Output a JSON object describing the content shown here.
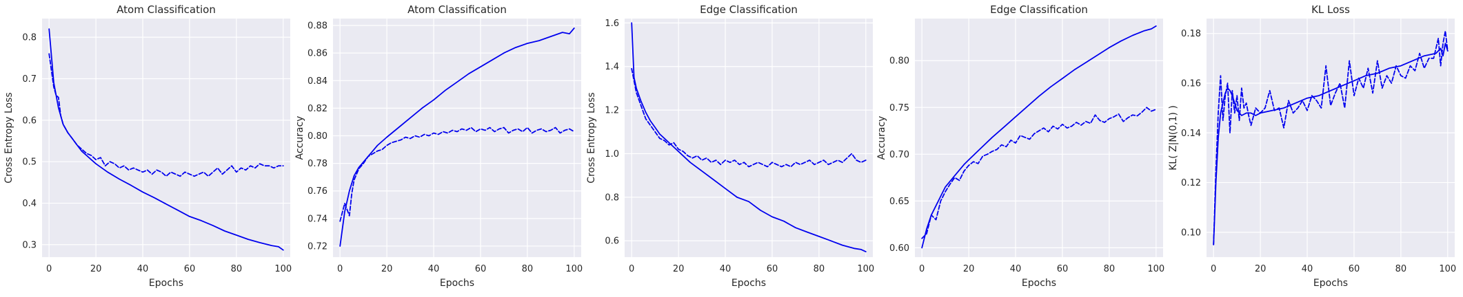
{
  "chart_data": [
    {
      "type": "line",
      "title": "Atom Classification",
      "xlabel": "Epochs",
      "ylabel": "Cross Entropy Loss",
      "xlim": [
        -3,
        103
      ],
      "ylim": [
        0.27,
        0.845
      ],
      "xticks": [
        0,
        20,
        40,
        60,
        80,
        100
      ],
      "xtick_labels": [
        "0",
        "20",
        "40",
        "60",
        "80",
        "100"
      ],
      "yticks": [
        0.3,
        0.4,
        0.5,
        0.6,
        0.7,
        0.8
      ],
      "ytick_labels": [
        "0.3",
        "0.4",
        "0.5",
        "0.6",
        "0.7",
        "0.8"
      ],
      "grid": true,
      "series": [
        {
          "style": "solid",
          "x": [
            0,
            2,
            4,
            6,
            8,
            10,
            12,
            14,
            16,
            18,
            20,
            25,
            30,
            35,
            40,
            45,
            50,
            55,
            60,
            65,
            70,
            75,
            80,
            85,
            90,
            95,
            98,
            100
          ],
          "y": [
            0.82,
            0.69,
            0.63,
            0.59,
            0.57,
            0.555,
            0.54,
            0.525,
            0.515,
            0.505,
            0.495,
            0.475,
            0.458,
            0.443,
            0.427,
            0.413,
            0.398,
            0.383,
            0.368,
            0.358,
            0.346,
            0.333,
            0.323,
            0.313,
            0.305,
            0.298,
            0.295,
            0.287
          ]
        },
        {
          "style": "dashed",
          "x": [
            0,
            2,
            3,
            4,
            5,
            6,
            8,
            10,
            12,
            14,
            16,
            18,
            20,
            22,
            24,
            26,
            28,
            30,
            32,
            34,
            36,
            38,
            40,
            42,
            44,
            46,
            48,
            50,
            52,
            54,
            56,
            58,
            60,
            62,
            64,
            66,
            68,
            70,
            72,
            74,
            76,
            78,
            80,
            82,
            84,
            86,
            88,
            90,
            92,
            94,
            96,
            98,
            100
          ],
          "y": [
            0.76,
            0.68,
            0.66,
            0.655,
            0.61,
            0.59,
            0.57,
            0.555,
            0.54,
            0.53,
            0.52,
            0.515,
            0.505,
            0.51,
            0.49,
            0.5,
            0.495,
            0.485,
            0.49,
            0.48,
            0.485,
            0.48,
            0.475,
            0.48,
            0.47,
            0.48,
            0.475,
            0.465,
            0.475,
            0.47,
            0.465,
            0.475,
            0.47,
            0.465,
            0.47,
            0.475,
            0.465,
            0.475,
            0.485,
            0.47,
            0.48,
            0.49,
            0.475,
            0.485,
            0.48,
            0.49,
            0.485,
            0.495,
            0.49,
            0.49,
            0.485,
            0.49,
            0.49
          ]
        }
      ]
    },
    {
      "type": "line",
      "title": "Atom Classification",
      "xlabel": "Epochs",
      "ylabel": "Accuracy",
      "xlim": [
        -3,
        103
      ],
      "ylim": [
        0.712,
        0.885
      ],
      "xticks": [
        0,
        20,
        40,
        60,
        80,
        100
      ],
      "xtick_labels": [
        "0",
        "20",
        "40",
        "60",
        "80",
        "100"
      ],
      "yticks": [
        0.72,
        0.74,
        0.76,
        0.78,
        0.8,
        0.82,
        0.84,
        0.86,
        0.88
      ],
      "ytick_labels": [
        "0.72",
        "0.74",
        "0.76",
        "0.78",
        "0.80",
        "0.82",
        "0.84",
        "0.86",
        "0.88"
      ],
      "grid": true,
      "series": [
        {
          "style": "solid",
          "x": [
            0,
            2,
            4,
            6,
            8,
            10,
            12,
            14,
            16,
            18,
            20,
            25,
            30,
            35,
            40,
            45,
            50,
            55,
            60,
            65,
            70,
            75,
            80,
            85,
            90,
            95,
            98,
            100
          ],
          "y": [
            0.72,
            0.745,
            0.76,
            0.771,
            0.777,
            0.781,
            0.785,
            0.789,
            0.793,
            0.796,
            0.799,
            0.806,
            0.813,
            0.82,
            0.826,
            0.833,
            0.839,
            0.845,
            0.85,
            0.855,
            0.86,
            0.864,
            0.867,
            0.869,
            0.872,
            0.875,
            0.874,
            0.878
          ]
        },
        {
          "style": "dashed",
          "x": [
            0,
            2,
            4,
            5,
            6,
            8,
            10,
            12,
            14,
            16,
            18,
            20,
            22,
            24,
            26,
            28,
            30,
            32,
            34,
            36,
            38,
            40,
            42,
            44,
            46,
            48,
            50,
            52,
            54,
            56,
            58,
            60,
            62,
            64,
            66,
            68,
            70,
            72,
            74,
            76,
            78,
            80,
            82,
            84,
            86,
            88,
            90,
            92,
            94,
            96,
            98,
            100
          ],
          "y": [
            0.738,
            0.751,
            0.742,
            0.758,
            0.768,
            0.776,
            0.78,
            0.785,
            0.787,
            0.789,
            0.79,
            0.793,
            0.795,
            0.796,
            0.797,
            0.799,
            0.798,
            0.8,
            0.799,
            0.801,
            0.8,
            0.802,
            0.801,
            0.803,
            0.802,
            0.804,
            0.803,
            0.805,
            0.804,
            0.806,
            0.803,
            0.805,
            0.804,
            0.806,
            0.803,
            0.805,
            0.806,
            0.802,
            0.804,
            0.805,
            0.803,
            0.806,
            0.802,
            0.804,
            0.805,
            0.803,
            0.804,
            0.806,
            0.802,
            0.804,
            0.805,
            0.803
          ]
        }
      ]
    },
    {
      "type": "line",
      "title": "Edge Classification",
      "xlabel": "Epochs",
      "ylabel": "Cross Entropy Loss",
      "xlim": [
        -3,
        103
      ],
      "ylim": [
        0.525,
        1.62
      ],
      "xticks": [
        0,
        20,
        40,
        60,
        80,
        100
      ],
      "xtick_labels": [
        "0",
        "20",
        "40",
        "60",
        "80",
        "100"
      ],
      "yticks": [
        0.6,
        0.8,
        1.0,
        1.2,
        1.4,
        1.6
      ],
      "ytick_labels": [
        "0.6",
        "0.8",
        "1.0",
        "1.2",
        "1.4",
        "1.6"
      ],
      "grid": true,
      "series": [
        {
          "style": "solid",
          "x": [
            0,
            1,
            2,
            4,
            6,
            8,
            10,
            12,
            14,
            16,
            18,
            20,
            25,
            30,
            35,
            40,
            45,
            50,
            55,
            60,
            65,
            70,
            75,
            80,
            85,
            90,
            95,
            98,
            100
          ],
          "y": [
            1.6,
            1.35,
            1.3,
            1.24,
            1.19,
            1.15,
            1.12,
            1.09,
            1.07,
            1.05,
            1.03,
            1.01,
            0.96,
            0.92,
            0.88,
            0.84,
            0.8,
            0.78,
            0.74,
            0.71,
            0.69,
            0.66,
            0.64,
            0.62,
            0.6,
            0.58,
            0.565,
            0.56,
            0.55
          ]
        },
        {
          "style": "dashed",
          "x": [
            0,
            2,
            4,
            6,
            8,
            10,
            12,
            14,
            16,
            18,
            20,
            22,
            24,
            26,
            28,
            30,
            32,
            34,
            36,
            38,
            40,
            42,
            44,
            46,
            48,
            50,
            52,
            54,
            56,
            58,
            60,
            62,
            64,
            66,
            68,
            70,
            72,
            74,
            76,
            78,
            80,
            82,
            84,
            86,
            88,
            90,
            92,
            94,
            96,
            98,
            100
          ],
          "y": [
            1.39,
            1.28,
            1.22,
            1.16,
            1.13,
            1.1,
            1.07,
            1.06,
            1.04,
            1.05,
            1.02,
            1.01,
            0.99,
            0.98,
            0.99,
            0.97,
            0.98,
            0.96,
            0.97,
            0.95,
            0.97,
            0.96,
            0.97,
            0.95,
            0.96,
            0.94,
            0.95,
            0.96,
            0.95,
            0.94,
            0.96,
            0.95,
            0.94,
            0.95,
            0.94,
            0.96,
            0.95,
            0.96,
            0.97,
            0.95,
            0.96,
            0.97,
            0.95,
            0.96,
            0.97,
            0.96,
            0.98,
            1.0,
            0.97,
            0.96,
            0.97
          ]
        }
      ]
    },
    {
      "type": "line",
      "title": "Edge Classification",
      "xlabel": "Epochs",
      "ylabel": "Accuracy",
      "xlim": [
        -3,
        103
      ],
      "ylim": [
        0.59,
        0.845
      ],
      "xticks": [
        0,
        20,
        40,
        60,
        80,
        100
      ],
      "xtick_labels": [
        "0",
        "20",
        "40",
        "60",
        "80",
        "100"
      ],
      "yticks": [
        0.6,
        0.65,
        0.7,
        0.75,
        0.8
      ],
      "ytick_labels": [
        "0.60",
        "0.65",
        "0.70",
        "0.75",
        "0.80"
      ],
      "grid": true,
      "series": [
        {
          "style": "solid",
          "x": [
            0,
            2,
            4,
            6,
            8,
            10,
            12,
            14,
            16,
            18,
            20,
            25,
            30,
            35,
            40,
            45,
            50,
            55,
            60,
            65,
            70,
            75,
            80,
            85,
            90,
            95,
            98,
            100
          ],
          "y": [
            0.6,
            0.62,
            0.635,
            0.645,
            0.655,
            0.665,
            0.671,
            0.677,
            0.683,
            0.689,
            0.694,
            0.706,
            0.718,
            0.729,
            0.74,
            0.751,
            0.762,
            0.772,
            0.781,
            0.79,
            0.798,
            0.806,
            0.814,
            0.821,
            0.827,
            0.832,
            0.834,
            0.837
          ]
        },
        {
          "style": "dashed",
          "x": [
            0,
            2,
            4,
            6,
            8,
            10,
            12,
            14,
            16,
            18,
            20,
            22,
            24,
            26,
            28,
            30,
            32,
            34,
            36,
            38,
            40,
            42,
            44,
            46,
            48,
            50,
            52,
            54,
            56,
            58,
            60,
            62,
            64,
            66,
            68,
            70,
            72,
            74,
            76,
            78,
            80,
            82,
            84,
            86,
            88,
            90,
            92,
            94,
            96,
            98,
            100
          ],
          "y": [
            0.61,
            0.615,
            0.635,
            0.63,
            0.65,
            0.66,
            0.668,
            0.675,
            0.672,
            0.682,
            0.688,
            0.692,
            0.69,
            0.698,
            0.7,
            0.703,
            0.705,
            0.71,
            0.708,
            0.715,
            0.712,
            0.72,
            0.718,
            0.716,
            0.722,
            0.725,
            0.728,
            0.724,
            0.73,
            0.727,
            0.732,
            0.728,
            0.73,
            0.734,
            0.731,
            0.735,
            0.733,
            0.742,
            0.736,
            0.734,
            0.738,
            0.74,
            0.743,
            0.735,
            0.739,
            0.742,
            0.741,
            0.745,
            0.75,
            0.746,
            0.748
          ]
        }
      ]
    },
    {
      "type": "line",
      "title": "KL Loss",
      "xlabel": "Epochs",
      "ylabel": "KL( Z|N(0,1) )",
      "xlim": [
        -3,
        103
      ],
      "ylim": [
        0.09,
        0.186
      ],
      "xticks": [
        0,
        20,
        40,
        60,
        80,
        100
      ],
      "xtick_labels": [
        "0",
        "20",
        "40",
        "60",
        "80",
        "100"
      ],
      "yticks": [
        0.1,
        0.12,
        0.14,
        0.16,
        0.18
      ],
      "ytick_labels": [
        "0.10",
        "0.12",
        "0.14",
        "0.16",
        "0.18"
      ],
      "grid": true,
      "series": [
        {
          "style": "solid",
          "x": [
            0,
            1,
            2,
            3,
            4,
            5,
            6,
            7,
            8,
            9,
            10,
            12,
            14,
            16,
            18,
            20,
            25,
            30,
            35,
            40,
            45,
            50,
            55,
            60,
            65,
            70,
            75,
            80,
            85,
            90,
            95,
            97,
            98,
            99,
            100
          ],
          "y": [
            0.095,
            0.12,
            0.138,
            0.148,
            0.152,
            0.156,
            0.158,
            0.157,
            0.155,
            0.152,
            0.149,
            0.147,
            0.148,
            0.148,
            0.147,
            0.148,
            0.149,
            0.15,
            0.152,
            0.154,
            0.155,
            0.157,
            0.159,
            0.161,
            0.163,
            0.164,
            0.166,
            0.167,
            0.169,
            0.171,
            0.172,
            0.174,
            0.171,
            0.176,
            0.173
          ]
        },
        {
          "style": "dashed",
          "x": [
            0,
            1,
            2,
            3,
            4,
            5,
            6,
            7,
            8,
            9,
            10,
            11,
            12,
            13,
            14,
            15,
            16,
            18,
            20,
            22,
            24,
            26,
            28,
            30,
            32,
            34,
            36,
            38,
            40,
            42,
            44,
            46,
            48,
            50,
            52,
            54,
            56,
            58,
            60,
            62,
            64,
            66,
            68,
            70,
            72,
            74,
            76,
            78,
            80,
            82,
            84,
            86,
            88,
            90,
            92,
            94,
            96,
            97,
            98,
            99,
            100
          ],
          "y": [
            0.095,
            0.125,
            0.148,
            0.163,
            0.145,
            0.155,
            0.16,
            0.14,
            0.157,
            0.148,
            0.155,
            0.145,
            0.158,
            0.15,
            0.152,
            0.147,
            0.143,
            0.15,
            0.148,
            0.15,
            0.157,
            0.149,
            0.15,
            0.142,
            0.153,
            0.148,
            0.15,
            0.153,
            0.149,
            0.155,
            0.153,
            0.15,
            0.167,
            0.151,
            0.156,
            0.16,
            0.15,
            0.169,
            0.155,
            0.162,
            0.158,
            0.166,
            0.156,
            0.169,
            0.158,
            0.163,
            0.16,
            0.167,
            0.163,
            0.162,
            0.167,
            0.165,
            0.172,
            0.166,
            0.17,
            0.17,
            0.178,
            0.167,
            0.176,
            0.181,
            0.173
          ]
        }
      ]
    }
  ]
}
